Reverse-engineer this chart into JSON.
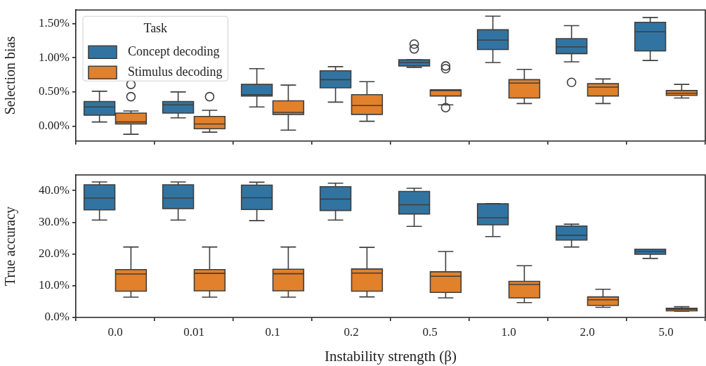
{
  "chart_data": [
    {
      "type": "box",
      "ylabel": "Selection bias",
      "legend_title": "Task",
      "legend": "top left",
      "tick_labels": "y",
      "categories": [
        "0.0",
        "0.01",
        "0.1",
        "0.2",
        "0.5",
        "1.0",
        "2.0",
        "5.0"
      ],
      "ylim": [
        -0.22,
        1.7
      ],
      "yticks": [
        {
          "value": 0,
          "label": "0.00%"
        },
        {
          "value": 0.5,
          "label": "0.50%"
        },
        {
          "value": 1,
          "label": "1.00%"
        },
        {
          "value": 1.5,
          "label": "1.50%"
        }
      ],
      "series": [
        {
          "name": "Concept decoding",
          "color": "#3274a1",
          "boxes": [
            {
              "low": 0.06,
              "q1": 0.16,
              "median": 0.28,
              "q3": 0.36,
              "high": 0.51
            },
            {
              "low": 0.12,
              "q1": 0.19,
              "median": 0.31,
              "q3": 0.36,
              "high": 0.5
            },
            {
              "low": 0.28,
              "q1": 0.44,
              "median": 0.46,
              "q3": 0.61,
              "high": 0.84
            },
            {
              "low": 0.35,
              "q1": 0.56,
              "median": 0.68,
              "q3": 0.81,
              "high": 0.87
            },
            {
              "low": 0.86,
              "q1": 0.88,
              "median": 0.93,
              "q3": 0.97,
              "high": 0.97,
              "outliers": [
                1.2,
                1.13
              ]
            },
            {
              "low": 0.93,
              "q1": 1.12,
              "median": 1.26,
              "q3": 1.41,
              "high": 1.61
            },
            {
              "low": 0.94,
              "q1": 1.06,
              "median": 1.16,
              "q3": 1.28,
              "high": 1.47,
              "outliers": [
                0.64
              ]
            },
            {
              "low": 0.96,
              "q1": 1.1,
              "median": 1.38,
              "q3": 1.52,
              "high": 1.59
            }
          ]
        },
        {
          "name": "Stimulus decoding",
          "color": "#e1812c",
          "boxes": [
            {
              "low": -0.12,
              "q1": 0.03,
              "median": 0.06,
              "q3": 0.19,
              "high": 0.22,
              "outliers": [
                0.61,
                0.43
              ]
            },
            {
              "low": -0.09,
              "q1": -0.04,
              "median": 0.03,
              "q3": 0.14,
              "high": 0.23,
              "outliers": [
                0.43
              ]
            },
            {
              "low": -0.06,
              "q1": 0.17,
              "median": 0.2,
              "q3": 0.37,
              "high": 0.6
            },
            {
              "low": 0.07,
              "q1": 0.17,
              "median": 0.3,
              "q3": 0.46,
              "high": 0.65
            },
            {
              "low": 0.31,
              "q1": 0.44,
              "median": 0.52,
              "q3": 0.53,
              "high": 0.53,
              "outliers": [
                0.88,
                0.84,
                0.27
              ]
            },
            {
              "low": 0.33,
              "q1": 0.41,
              "median": 0.63,
              "q3": 0.68,
              "high": 0.83
            },
            {
              "low": 0.33,
              "q1": 0.44,
              "median": 0.57,
              "q3": 0.62,
              "high": 0.69
            },
            {
              "low": 0.41,
              "q1": 0.45,
              "median": 0.48,
              "q3": 0.52,
              "high": 0.61
            }
          ]
        }
      ]
    },
    {
      "type": "box",
      "ylabel": "True accuracy",
      "xlabel": "Instability strength (β)",
      "categories": [
        "0.0",
        "0.01",
        "0.1",
        "0.2",
        "0.5",
        "1.0",
        "2.0",
        "5.0"
      ],
      "ylim": [
        0,
        44.9
      ],
      "yticks": [
        {
          "value": 0,
          "label": "0.0%"
        },
        {
          "value": 10,
          "label": "10.0%"
        },
        {
          "value": 20,
          "label": "20.0%"
        },
        {
          "value": 30,
          "label": "30.0%"
        },
        {
          "value": 40,
          "label": "40.0%"
        }
      ],
      "series": [
        {
          "color": "#3274a1",
          "boxes": [
            {
              "low": 30.7,
              "q1": 33.9,
              "median": 37.6,
              "q3": 41.8,
              "high": 42.7
            },
            {
              "low": 30.7,
              "q1": 34.3,
              "median": 37.6,
              "q3": 41.8,
              "high": 42.7
            },
            {
              "low": 30.5,
              "q1": 34.0,
              "median": 37.7,
              "q3": 41.7,
              "high": 42.6
            },
            {
              "low": 30.7,
              "q1": 33.7,
              "median": 37.3,
              "q3": 41.2,
              "high": 42.3
            },
            {
              "low": 28.7,
              "q1": 32.6,
              "median": 35.5,
              "q3": 39.7,
              "high": 40.7
            },
            {
              "low": 25.5,
              "q1": 29.2,
              "median": 31.4,
              "q3": 35.8,
              "high": 35.9
            },
            {
              "low": 22.2,
              "q1": 24.4,
              "median": 25.9,
              "q3": 28.8,
              "high": 29.4
            },
            {
              "low": 18.6,
              "q1": 19.9,
              "median": 20.8,
              "q3": 21.5,
              "high": 21.5
            }
          ]
        },
        {
          "color": "#e1812c",
          "boxes": [
            {
              "low": 6.4,
              "q1": 8.3,
              "median": 13.7,
              "q3": 15.1,
              "high": 22.2
            },
            {
              "low": 6.4,
              "q1": 8.4,
              "median": 13.9,
              "q3": 15.1,
              "high": 22.2
            },
            {
              "low": 6.4,
              "q1": 8.4,
              "median": 13.8,
              "q3": 15.2,
              "high": 22.2
            },
            {
              "low": 6.5,
              "q1": 8.3,
              "median": 14.0,
              "q3": 15.3,
              "high": 22.1
            },
            {
              "low": 6.2,
              "q1": 7.9,
              "median": 13.0,
              "q3": 14.4,
              "high": 20.8
            },
            {
              "low": 4.7,
              "q1": 6.2,
              "median": 10.4,
              "q3": 11.4,
              "high": 16.3
            },
            {
              "low": 3.2,
              "q1": 3.8,
              "median": 5.6,
              "q3": 6.5,
              "high": 8.9
            },
            {
              "low": 2.0,
              "q1": 2.1,
              "median": 2.6,
              "q3": 2.9,
              "high": 3.4
            }
          ]
        }
      ]
    }
  ]
}
